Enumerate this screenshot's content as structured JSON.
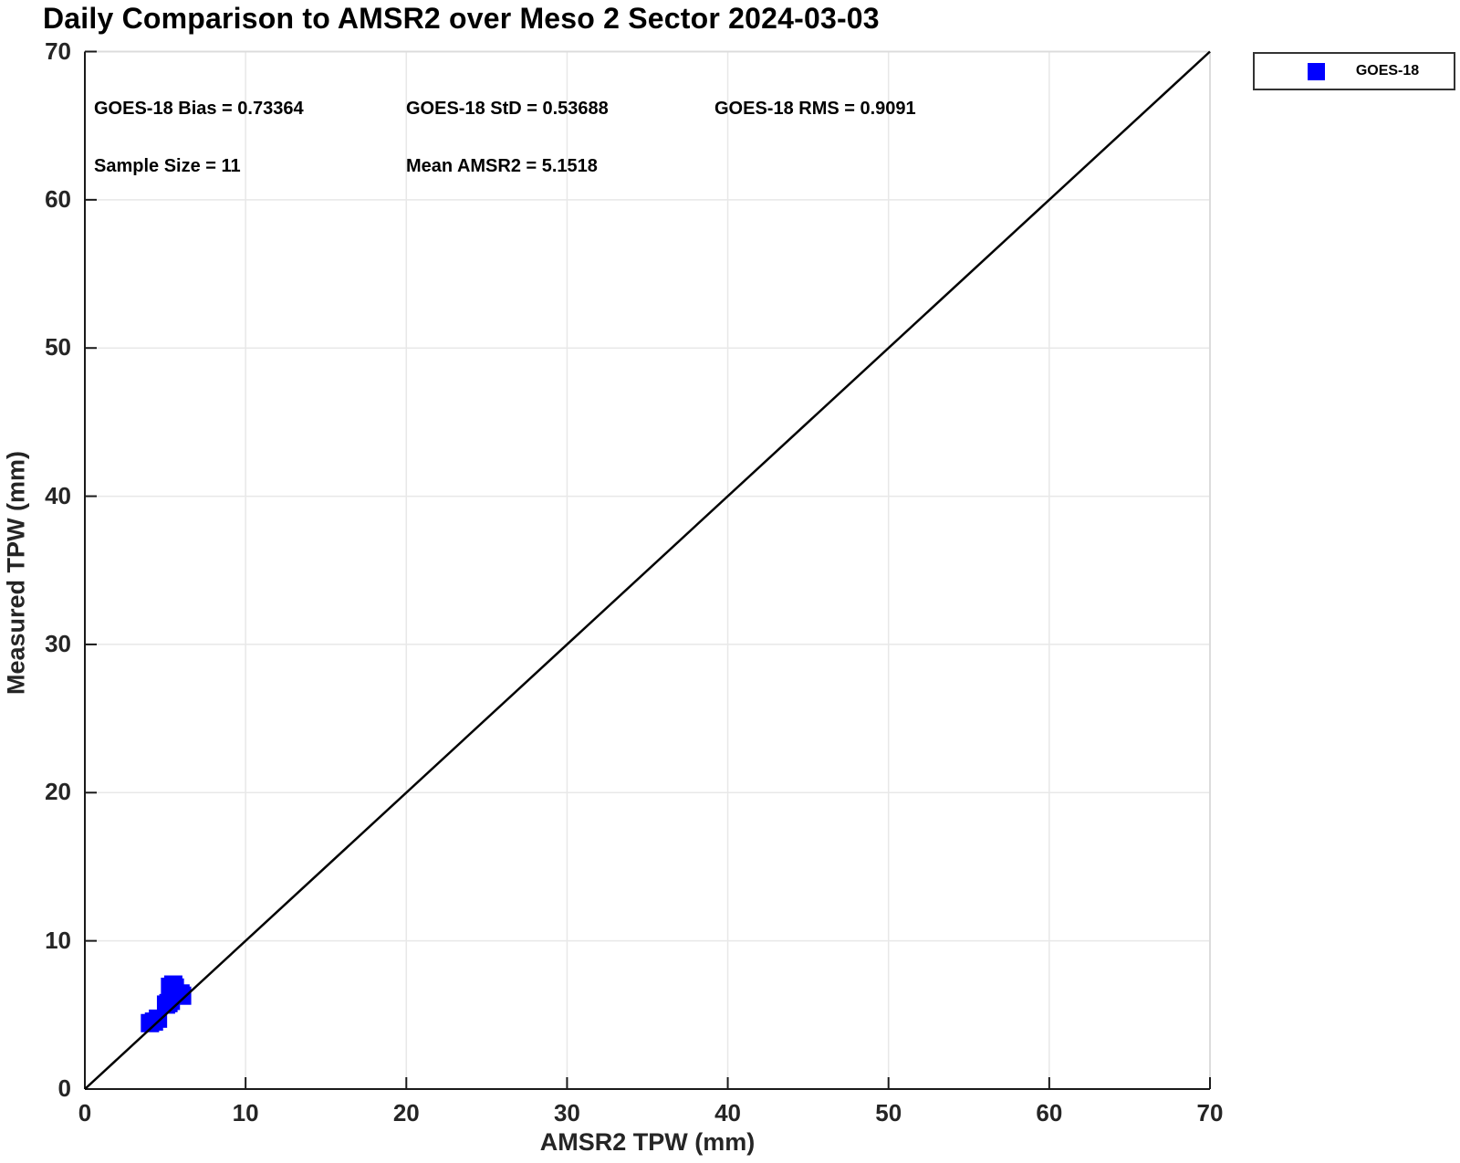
{
  "title": "Daily Comparison to AMSR2 over Meso 2 Sector 2024-03-03",
  "stats": {
    "bias": "GOES-18 Bias = 0.73364",
    "std": "GOES-18 StD = 0.53688",
    "rms": "GOES-18 RMS = 0.9091",
    "sample_size": "Sample Size = 11",
    "mean_amsr2": "Mean AMSR2 = 5.1518"
  },
  "legend": {
    "items": [
      {
        "label": "GOES-18",
        "marker": "square",
        "color": "#0000ff"
      }
    ],
    "position": "top-right-outside"
  },
  "colors": {
    "marker": "#0000ff",
    "grid": "#e8e8e8",
    "frame_light": "#dcdcdc",
    "axis": "#1a1a1a",
    "reference_line": "#000000"
  },
  "chart_data": {
    "type": "scatter",
    "title": "Daily Comparison to AMSR2 over Meso 2 Sector 2024-03-03",
    "xlabel": "AMSR2 TPW (mm)",
    "ylabel": "Measured TPW (mm)",
    "xlim": [
      0,
      70
    ],
    "ylim": [
      0,
      70
    ],
    "xticks": [
      0,
      10,
      20,
      30,
      40,
      50,
      60,
      70
    ],
    "yticks": [
      0,
      10,
      20,
      30,
      40,
      50,
      60,
      70
    ],
    "grid": true,
    "legend_position": "top-right-outside",
    "reference_line": {
      "from": [
        0,
        0
      ],
      "to": [
        70,
        70
      ],
      "style": "solid",
      "color": "#000000"
    },
    "series": [
      {
        "name": "GOES-18",
        "marker": "square",
        "color": "#0000ff",
        "points": [
          [
            4.05,
            4.45
          ],
          [
            4.3,
            4.55
          ],
          [
            4.55,
            4.75
          ],
          [
            5.05,
            5.7
          ],
          [
            5.2,
            5.8
          ],
          [
            5.35,
            5.95
          ],
          [
            5.3,
            6.9
          ],
          [
            5.5,
            7.05
          ],
          [
            5.6,
            6.85
          ],
          [
            5.95,
            6.45
          ],
          [
            6.05,
            6.3
          ]
        ]
      }
    ],
    "annotations": [
      "GOES-18 Bias = 0.73364",
      "GOES-18 StD = 0.53688",
      "GOES-18 RMS = 0.9091",
      "Sample Size = 11",
      "Mean AMSR2 = 5.1518"
    ]
  }
}
